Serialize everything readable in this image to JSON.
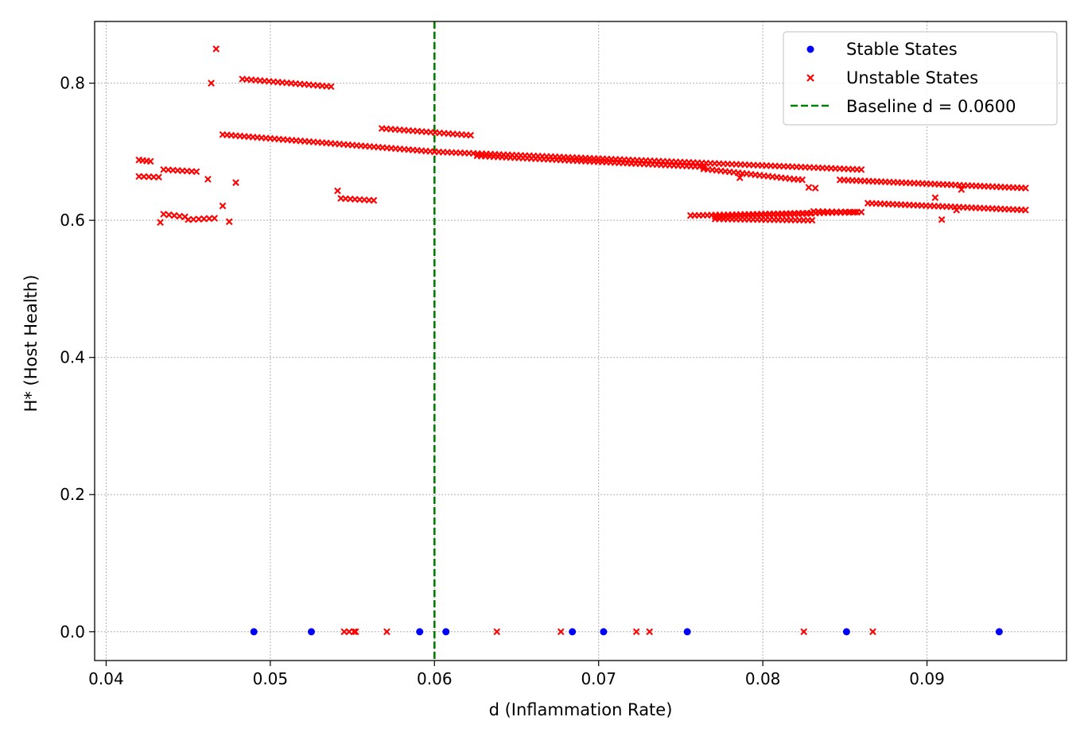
{
  "chart_data": {
    "type": "scatter",
    "xlabel": "d (Inflammation Rate)",
    "ylabel": "H* (Host Health)",
    "xlim": [
      0.0393,
      0.0985
    ],
    "ylim": [
      -0.042,
      0.89
    ],
    "x_ticks": [
      0.04,
      0.05,
      0.06,
      0.07,
      0.08,
      0.09
    ],
    "x_tick_labels": [
      "0.04",
      "0.05",
      "0.06",
      "0.07",
      "0.08",
      "0.09"
    ],
    "y_ticks": [
      0.0,
      0.2,
      0.4,
      0.6,
      0.8
    ],
    "y_tick_labels": [
      "0.0",
      "0.2",
      "0.4",
      "0.6",
      "0.8"
    ],
    "grid": true,
    "legend_position": "top-right",
    "baseline": {
      "x": 0.06,
      "label": "Baseline d = 0.0600",
      "color": "#008000"
    },
    "series": [
      {
        "name": "Stable States",
        "marker": "circle",
        "color": "#0000ff",
        "points": [
          [
            0.049,
            0
          ],
          [
            0.0525,
            0
          ],
          [
            0.0591,
            0
          ],
          [
            0.0607,
            0
          ],
          [
            0.0684,
            0
          ],
          [
            0.0703,
            0
          ],
          [
            0.0754,
            0
          ],
          [
            0.0851,
            0
          ],
          [
            0.0944,
            0
          ]
        ]
      },
      {
        "name": "Unstable States",
        "marker": "x",
        "color": "#ff0000",
        "points": [
          [
            0.0545,
            0
          ],
          [
            0.0548,
            0
          ],
          [
            0.0551,
            0
          ],
          [
            0.0552,
            0
          ],
          [
            0.0571,
            0
          ],
          [
            0.0638,
            0
          ],
          [
            0.0677,
            0
          ],
          [
            0.0723,
            0
          ],
          [
            0.0731,
            0
          ],
          [
            0.0825,
            0
          ],
          [
            0.0867,
            0
          ],
          [
            0.0467,
            0.85
          ],
          [
            0.0464,
            0.8
          ],
          [
            0.0462,
            0.66
          ],
          [
            0.0479,
            0.655
          ],
          [
            0.0541,
            0.643
          ],
          [
            0.0471,
            0.621
          ],
          [
            0.0475,
            0.598
          ],
          [
            0.0433,
            0.597
          ],
          [
            0.0905,
            0.633
          ],
          [
            0.0909,
            0.601
          ],
          [
            0.0921,
            0.645
          ],
          [
            0.0786,
            0.662
          ],
          [
            0.0918,
            0.615
          ]
        ],
        "segments": [
          {
            "x0": 0.042,
            "y0": 0.688,
            "x1": 0.0427,
            "y1": 0.686,
            "n": 4
          },
          {
            "x0": 0.042,
            "y0": 0.664,
            "x1": 0.0432,
            "y1": 0.663,
            "n": 5
          },
          {
            "x0": 0.0435,
            "y0": 0.674,
            "x1": 0.0455,
            "y1": 0.671,
            "n": 8
          },
          {
            "x0": 0.0435,
            "y0": 0.609,
            "x1": 0.0448,
            "y1": 0.605,
            "n": 5
          },
          {
            "x0": 0.045,
            "y0": 0.601,
            "x1": 0.0466,
            "y1": 0.603,
            "n": 6
          },
          {
            "x0": 0.0483,
            "y0": 0.806,
            "x1": 0.0537,
            "y1": 0.795,
            "n": 21
          },
          {
            "x0": 0.0471,
            "y0": 0.725,
            "x1": 0.06,
            "y1": 0.7,
            "n": 50
          },
          {
            "x0": 0.06,
            "y0": 0.7,
            "x1": 0.086,
            "y1": 0.674,
            "n": 100
          },
          {
            "x0": 0.086,
            "y0": 0.674,
            "x1": 0.09,
            "y1": 0.667,
            "n": 0
          },
          {
            "x0": 0.0543,
            "y0": 0.632,
            "x1": 0.0563,
            "y1": 0.629,
            "n": 8
          },
          {
            "x0": 0.0568,
            "y0": 0.734,
            "x1": 0.0622,
            "y1": 0.724,
            "n": 21
          },
          {
            "x0": 0.0626,
            "y0": 0.694,
            "x1": 0.072,
            "y1": 0.683,
            "n": 38
          },
          {
            "x0": 0.072,
            "y0": 0.683,
            "x1": 0.0764,
            "y1": 0.678,
            "n": 18
          },
          {
            "x0": 0.0764,
            "y0": 0.675,
            "x1": 0.0819,
            "y1": 0.66,
            "n": 22
          },
          {
            "x0": 0.0819,
            "y0": 0.66,
            "x1": 0.0824,
            "y1": 0.659,
            "n": 3
          },
          {
            "x0": 0.0828,
            "y0": 0.648,
            "x1": 0.0832,
            "y1": 0.647,
            "n": 2
          },
          {
            "x0": 0.0756,
            "y0": 0.607,
            "x1": 0.086,
            "y1": 0.612,
            "n": 42
          },
          {
            "x0": 0.0771,
            "y0": 0.602,
            "x1": 0.083,
            "y1": 0.6,
            "n": 24
          },
          {
            "x0": 0.0771,
            "y0": 0.606,
            "x1": 0.0829,
            "y1": 0.61,
            "n": 24
          },
          {
            "x0": 0.0831,
            "y0": 0.613,
            "x1": 0.0856,
            "y1": 0.612,
            "n": 10
          },
          {
            "x0": 0.0847,
            "y0": 0.659,
            "x1": 0.096,
            "y1": 0.647,
            "n": 46
          },
          {
            "x0": 0.0864,
            "y0": 0.625,
            "x1": 0.096,
            "y1": 0.615,
            "n": 39
          }
        ]
      }
    ]
  }
}
